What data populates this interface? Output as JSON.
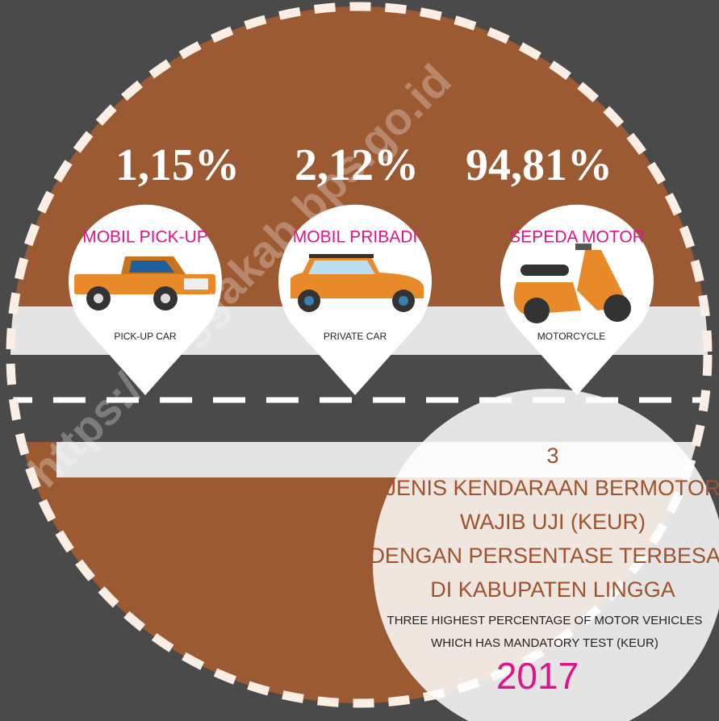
{
  "watermark": "https://linggakab.bps.go.id",
  "items": [
    {
      "percent": "1,15%",
      "title": "MOBIL PICK-UP",
      "subtitle": "PICK-UP CAR"
    },
    {
      "percent": "2,12%",
      "title": "MOBIL PRIBADI",
      "subtitle": "PRIVATE CAR"
    },
    {
      "percent": "94,81%",
      "title": "SEPEDA MOTOR",
      "subtitle": "MOTORCYCLE"
    }
  ],
  "info": {
    "number": "3",
    "lines_id": [
      "JENIS KENDARAAN BERMOTOR",
      "WAJIB UJI (KEUR)",
      "DENGAN PERSENTASE TERBESAR",
      "DI KABUPATEN LINGGA"
    ],
    "lines_en": [
      "THREE HIGHEST PERCENTAGE OF MOTOR VEHICLES",
      "WHICH HAS MANDATORY TEST (KEUR)"
    ],
    "year": "2017"
  }
}
